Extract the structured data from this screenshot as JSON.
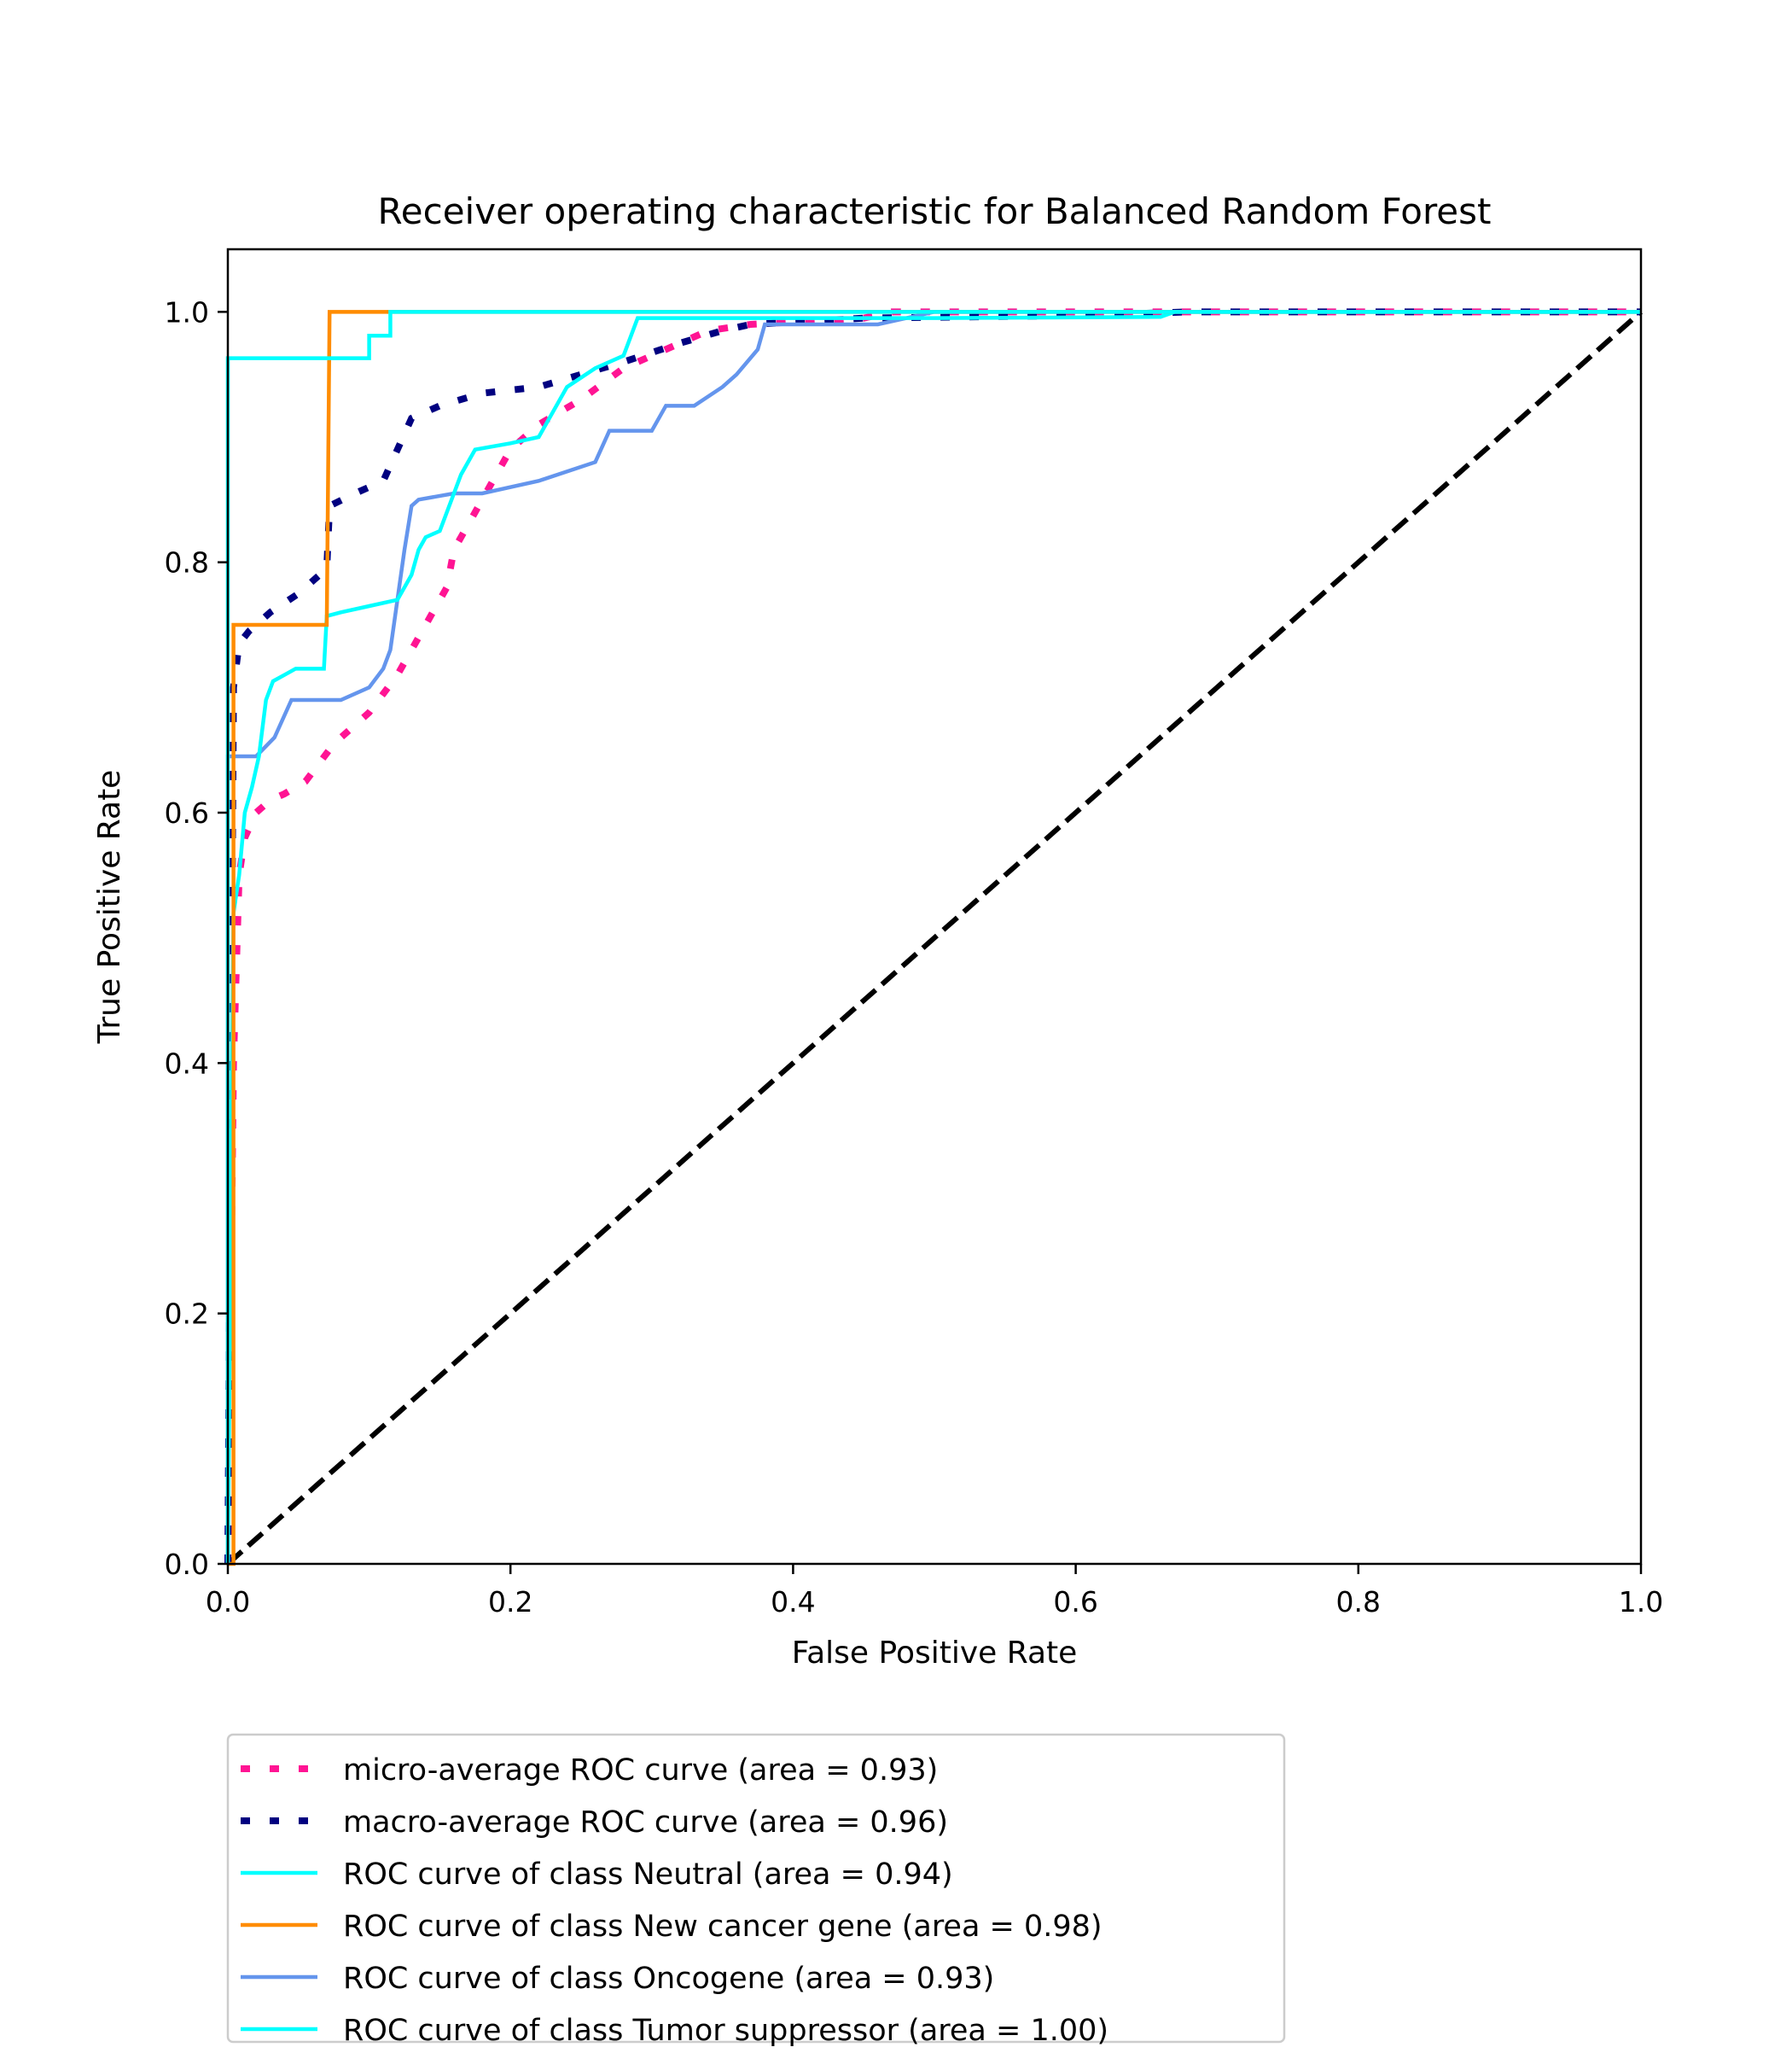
{
  "chart_data": {
    "type": "line",
    "title": "Receiver operating characteristic for Balanced Random Forest",
    "xlabel": "False Positive Rate",
    "ylabel": "True Positive Rate",
    "xlim": [
      0.0,
      1.0
    ],
    "ylim": [
      0.0,
      1.05
    ],
    "grid": false,
    "legend_position": "below chart",
    "x_ticks": [
      "0.0",
      "0.2",
      "0.4",
      "0.6",
      "0.8",
      "1.0"
    ],
    "y_ticks": [
      "0.0",
      "0.2",
      "0.4",
      "0.6",
      "0.8",
      "1.0"
    ],
    "series": [
      {
        "name": "micro-average ROC curve (area = 0.93)",
        "color": "#ff1493",
        "style": "dotted",
        "x": [
          0.0,
          0.004,
          0.008,
          0.012,
          0.02,
          0.03,
          0.04,
          0.055,
          0.065,
          0.075,
          0.09,
          0.1,
          0.11,
          0.12,
          0.13,
          0.14,
          0.155,
          0.16,
          0.17,
          0.19,
          0.2,
          0.22,
          0.25,
          0.28,
          0.31,
          0.34,
          0.37,
          0.45,
          0.47,
          0.6,
          0.8,
          1.0
        ],
        "y": [
          0.0,
          0.4,
          0.55,
          0.58,
          0.6,
          0.61,
          0.615,
          0.625,
          0.64,
          0.655,
          0.67,
          0.68,
          0.695,
          0.71,
          0.73,
          0.75,
          0.78,
          0.81,
          0.83,
          0.87,
          0.89,
          0.91,
          0.93,
          0.955,
          0.97,
          0.985,
          0.99,
          0.995,
          1.0,
          1.0,
          1.0,
          1.0
        ]
      },
      {
        "name": "macro-average ROC curve (area = 0.96)",
        "color": "#000080",
        "style": "dotted",
        "x": [
          0.0,
          0.004,
          0.008,
          0.015,
          0.03,
          0.05,
          0.07,
          0.072,
          0.09,
          0.11,
          0.13,
          0.15,
          0.18,
          0.22,
          0.25,
          0.28,
          0.32,
          0.35,
          0.37,
          0.45,
          0.6,
          0.68,
          0.8,
          1.0
        ],
        "y": [
          0.0,
          0.7,
          0.735,
          0.745,
          0.76,
          0.775,
          0.795,
          0.845,
          0.855,
          0.865,
          0.915,
          0.925,
          0.935,
          0.94,
          0.95,
          0.96,
          0.975,
          0.985,
          0.99,
          0.995,
          0.997,
          1.0,
          1.0,
          1.0
        ]
      },
      {
        "name": "ROC curve of class Neutral (area = 0.94)",
        "color": "#00ffff",
        "style": "solid",
        "x": [
          0.0,
          0.004,
          0.008,
          0.012,
          0.017,
          0.022,
          0.027,
          0.032,
          0.04,
          0.048,
          0.068,
          0.07,
          0.08,
          0.1,
          0.12,
          0.13,
          0.135,
          0.14,
          0.15,
          0.16,
          0.165,
          0.175,
          0.2,
          0.22,
          0.23,
          0.24,
          0.26,
          0.28,
          0.29,
          0.3,
          0.5,
          0.66,
          0.67,
          0.7,
          1.0
        ],
        "y": [
          0.0,
          0.52,
          0.55,
          0.6,
          0.62,
          0.645,
          0.69,
          0.705,
          0.71,
          0.715,
          0.715,
          0.757,
          0.76,
          0.765,
          0.77,
          0.79,
          0.81,
          0.82,
          0.825,
          0.855,
          0.87,
          0.89,
          0.895,
          0.9,
          0.92,
          0.94,
          0.955,
          0.965,
          0.995,
          0.995,
          0.995,
          0.996,
          1.0,
          1.0,
          1.0
        ]
      },
      {
        "name": "ROC curve of class New cancer gene (area = 0.98)",
        "color": "#ff8c00",
        "style": "solid",
        "x": [
          0.0,
          0.004,
          0.004,
          0.07,
          0.072,
          0.11,
          1.0
        ],
        "y": [
          0.0,
          0.0,
          0.75,
          0.75,
          1.0,
          1.0,
          1.0
        ],
        "step": true
      },
      {
        "name": "ROC curve of class Oncogene (area = 0.93)",
        "color": "#6495ed",
        "style": "solid",
        "x": [
          0.0,
          0.0,
          0.02,
          0.033,
          0.045,
          0.08,
          0.1,
          0.11,
          0.115,
          0.12,
          0.125,
          0.13,
          0.135,
          0.16,
          0.18,
          0.22,
          0.26,
          0.27,
          0.3,
          0.31,
          0.33,
          0.35,
          0.36,
          0.375,
          0.38,
          0.4,
          0.46,
          0.48,
          0.5,
          0.7,
          1.0
        ],
        "y": [
          0.0,
          0.645,
          0.645,
          0.66,
          0.69,
          0.69,
          0.7,
          0.715,
          0.73,
          0.77,
          0.81,
          0.845,
          0.85,
          0.855,
          0.855,
          0.865,
          0.88,
          0.905,
          0.905,
          0.925,
          0.925,
          0.94,
          0.95,
          0.97,
          0.99,
          0.99,
          0.99,
          0.995,
          1.0,
          1.0,
          1.0
        ]
      },
      {
        "name": "ROC curve of class Tumor suppressor (area = 1.00)",
        "color": "#00ffff",
        "style": "solid",
        "x": [
          0.0,
          0.0,
          0.1,
          0.1,
          0.115,
          0.115,
          1.0
        ],
        "y": [
          0.0,
          0.963,
          0.963,
          0.981,
          0.981,
          1.0,
          1.0
        ],
        "step": true
      },
      {
        "name": "",
        "color": "#000000",
        "style": "dashed",
        "x": [
          0.0,
          1.0
        ],
        "y": [
          0.0,
          1.0
        ]
      }
    ]
  }
}
